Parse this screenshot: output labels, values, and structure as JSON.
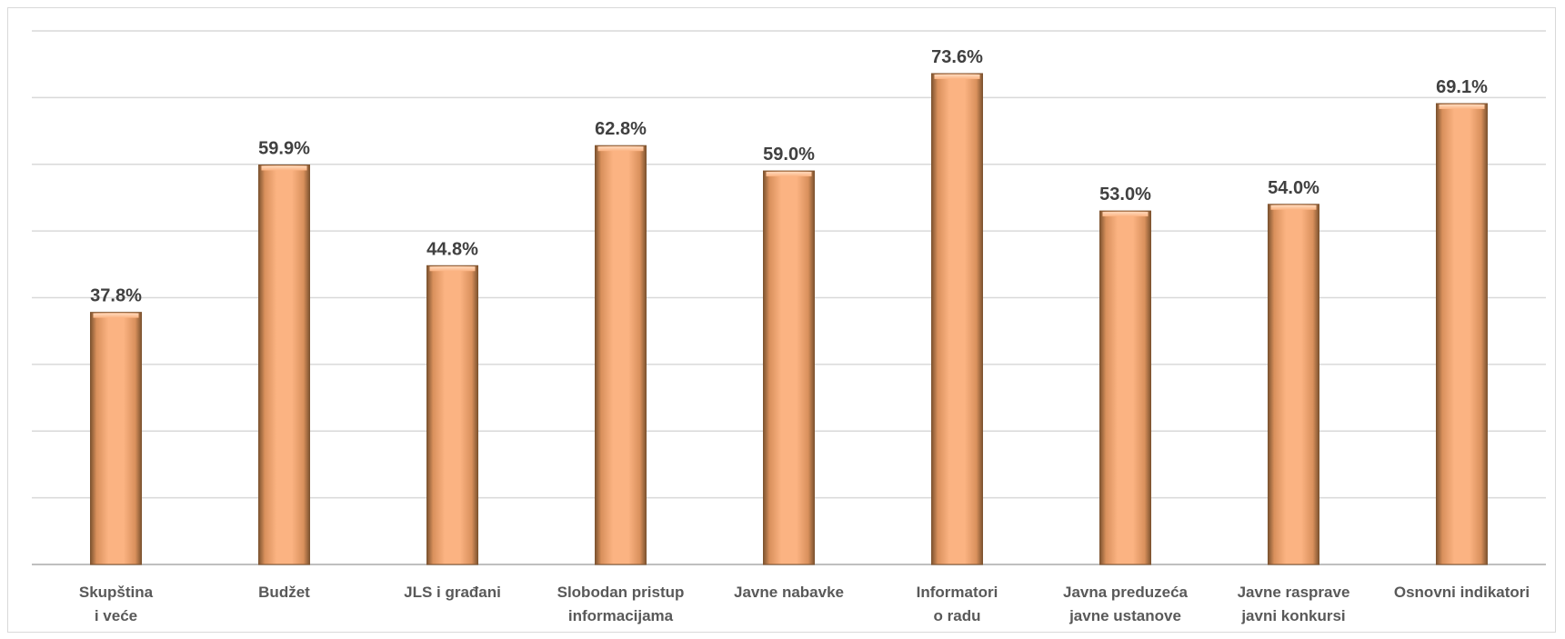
{
  "chart_data": {
    "type": "bar",
    "categories": [
      [
        "Skupština",
        "i veće"
      ],
      [
        "Budžet"
      ],
      [
        "JLS i građani"
      ],
      [
        "Slobodan pristup",
        "informacijama"
      ],
      [
        "Javne nabavke"
      ],
      [
        "Informatori",
        "o radu"
      ],
      [
        "Javna preduzeća",
        "javne ustanove"
      ],
      [
        "Javne rasprave",
        "javni konkursi"
      ],
      [
        "Osnovni indikatori"
      ]
    ],
    "values": [
      37.8,
      59.9,
      44.8,
      62.8,
      59.0,
      73.6,
      53.0,
      54.0,
      69.1
    ],
    "data_labels": [
      "37.8%",
      "59.9%",
      "44.8%",
      "62.8%",
      "59.0%",
      "73.6%",
      "53.0%",
      "54.0%",
      "69.1%"
    ],
    "ylim": [
      0,
      80
    ],
    "grid": true,
    "legend": "none",
    "title": "",
    "xlabel": "",
    "ylabel": "",
    "colors": {
      "bar_fill": "#FBB382",
      "bar_edge": "#7F5430",
      "gridline": "#D9D9D9",
      "axis": "#BFBFBF"
    }
  }
}
